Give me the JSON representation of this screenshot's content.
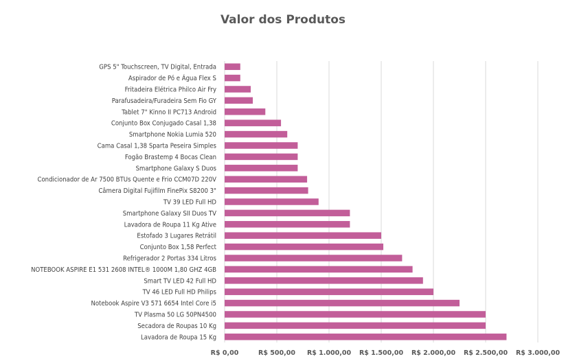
{
  "chart_data": {
    "type": "bar",
    "orientation": "horizontal",
    "title": "Valor dos Produtos",
    "xlabel": "",
    "ylabel": "",
    "xlim": [
      0,
      3000
    ],
    "x_ticks": [
      "R$ 0,00",
      "R$ 500,00",
      "R$ 1.000,00",
      "R$ 1.500,00",
      "R$ 2.000,00",
      "R$ 2.500,00",
      "R$ 3.000,00"
    ],
    "grid": "vertical",
    "legend": "none",
    "bar_color": "#C25E99",
    "categories": [
      "GPS 5\" Touchscreen, TV Digital, Entrada",
      "Aspirador de Pó e Água Flex S",
      "Fritadeira Elétrica Philco Air Fry",
      "Parafusadeira/Furadeira Sem Fio GY",
      "Tablet 7\" Kinno II PC713 Android",
      "Conjunto Box Conjugado Casal 1,38",
      "Smartphone Nokia Lumia 520",
      "Cama Casal 1,38 Sparta Peseira Simples",
      "Fogão Brastemp 4 Bocas Clean",
      "Smartphone Galaxy S Duos",
      "Condicionador de Ar 7500 BTUs Quente e Frio CCM07D 220V",
      "Câmera Digital Fujifilm FinePix S8200 3\"",
      "TV 39 LED Full HD",
      "Smartphone Galaxy SII Duos TV",
      "Lavadora de Roupa 11 Kg Ative",
      "Estofado 3 Lugares Retrátil",
      "Conjunto Box 1,58 Perfect",
      "Refrigerador 2 Portas 334 Litros",
      "NOTEBOOK ASPIRE E1 531 2608 INTEL® 1000M 1,80 GHZ 4GB",
      "Smart TV LED 42 Full HD",
      "TV 46 LED Full HD Philips",
      "Notebook Aspire V3 571 6654 Intel Core i5",
      "TV Plasma 50 LG 50PN4500",
      "Secadora de Roupas 10 Kg",
      "Lavadora de Roupa 15 Kg"
    ],
    "values": [
      150,
      150,
      250,
      270,
      390,
      540,
      600,
      700,
      700,
      700,
      790,
      800,
      900,
      1200,
      1200,
      1500,
      1520,
      1700,
      1800,
      1900,
      2000,
      2250,
      2500,
      2500,
      2700
    ]
  }
}
